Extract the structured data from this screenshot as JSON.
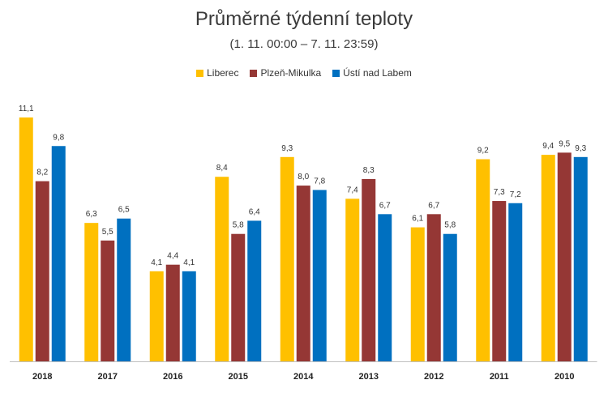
{
  "chart_data": {
    "type": "bar",
    "title": "Průměrné týdenní teploty",
    "subtitle": "(1. 11. 00:00 – 7. 11. 23:59)",
    "categories": [
      "2018",
      "2017",
      "2016",
      "2015",
      "2014",
      "2013",
      "2012",
      "2011",
      "2010"
    ],
    "series": [
      {
        "name": "Liberec",
        "color": "#FFC000",
        "values": [
          11.1,
          6.3,
          4.1,
          8.4,
          9.3,
          7.4,
          6.1,
          9.2,
          9.4
        ],
        "labels": [
          "11,1",
          "6,3",
          "4,1",
          "8,4",
          "9,3",
          "7,4",
          "6,1",
          "9,2",
          "9,4"
        ]
      },
      {
        "name": "Plzeň-Mikulka",
        "color": "#953735",
        "values": [
          8.2,
          5.5,
          4.4,
          5.8,
          8.0,
          8.3,
          6.7,
          7.3,
          9.5
        ],
        "labels": [
          "8,2",
          "5,5",
          "4,4",
          "5,8",
          "8,0",
          "8,3",
          "6,7",
          "7,3",
          "9,5"
        ]
      },
      {
        "name": "Ústí nad Labem",
        "color": "#0070C0",
        "values": [
          9.8,
          6.5,
          4.1,
          6.4,
          7.8,
          6.7,
          5.8,
          7.2,
          9.3
        ],
        "labels": [
          "9,8",
          "6,5",
          "4,1",
          "6,4",
          "7,8",
          "6,7",
          "5,8",
          "7,2",
          "9,3"
        ]
      }
    ],
    "ylim": [
      0,
      11.1
    ],
    "grid": false,
    "legend_position": "top"
  }
}
